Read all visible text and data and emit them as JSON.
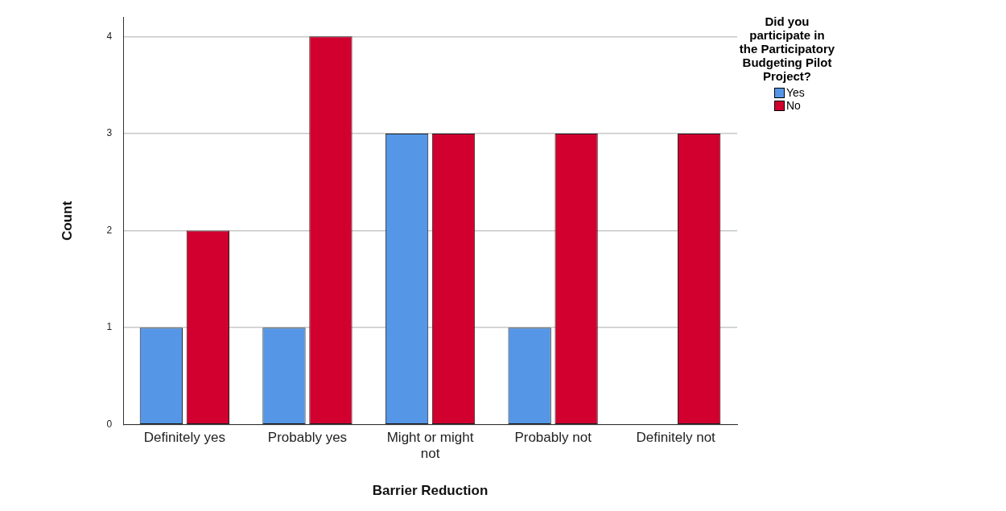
{
  "chart_data": {
    "type": "bar",
    "xlabel": "Barrier Reduction",
    "ylabel": "Count",
    "legend_title": "Did you participate in the Participatory Budgeting Pilot Project?",
    "categories": [
      "Definitely yes",
      "Probably yes",
      "Might or might not",
      "Probably not",
      "Definitely not"
    ],
    "series": [
      {
        "name": "Yes",
        "color": "#5596e6",
        "values": [
          1,
          1,
          3,
          1,
          0
        ]
      },
      {
        "name": "No",
        "color": "#d1002e",
        "values": [
          2,
          4,
          3,
          3,
          3
        ]
      }
    ],
    "ylim": [
      0,
      4.2
    ],
    "yticks": [
      0,
      1,
      2,
      3,
      4
    ],
    "grid": "y",
    "legend": "top right"
  }
}
